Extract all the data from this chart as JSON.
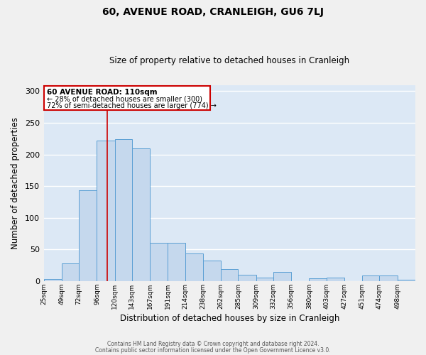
{
  "title": "60, AVENUE ROAD, CRANLEIGH, GU6 7LJ",
  "subtitle": "Size of property relative to detached houses in Cranleigh",
  "xlabel": "Distribution of detached houses by size in Cranleigh",
  "ylabel": "Number of detached properties",
  "bar_labels": [
    "25sqm",
    "49sqm",
    "72sqm",
    "96sqm",
    "120sqm",
    "143sqm",
    "167sqm",
    "191sqm",
    "214sqm",
    "238sqm",
    "262sqm",
    "285sqm",
    "309sqm",
    "332sqm",
    "356sqm",
    "380sqm",
    "403sqm",
    "427sqm",
    "451sqm",
    "474sqm",
    "498sqm"
  ],
  "bar_values": [
    3,
    28,
    143,
    222,
    224,
    210,
    60,
    61,
    44,
    32,
    19,
    10,
    5,
    15,
    0,
    4,
    5,
    0,
    9,
    9,
    2
  ],
  "bar_color": "#c5d8ed",
  "bar_edge_color": "#5a9fd4",
  "bg_color": "#dce8f5",
  "fig_bg_color": "#f0f0f0",
  "grid_color": "#ffffff",
  "property_line_x": 110,
  "property_line_color": "#cc0000",
  "annotation_title": "60 AVENUE ROAD: 110sqm",
  "annotation_line1": "← 28% of detached houses are smaller (300)",
  "annotation_line2": "72% of semi-detached houses are larger (774) →",
  "annotation_box_color": "#cc0000",
  "ylim": [
    0,
    310
  ],
  "yticks": [
    0,
    50,
    100,
    150,
    200,
    250,
    300
  ],
  "footer1": "Contains HM Land Registry data © Crown copyright and database right 2024.",
  "footer2": "Contains public sector information licensed under the Open Government Licence v3.0.",
  "bin_edges": [
    25,
    49,
    72,
    96,
    120,
    143,
    167,
    191,
    214,
    238,
    262,
    285,
    309,
    332,
    356,
    380,
    403,
    427,
    451,
    474,
    498,
    522
  ]
}
